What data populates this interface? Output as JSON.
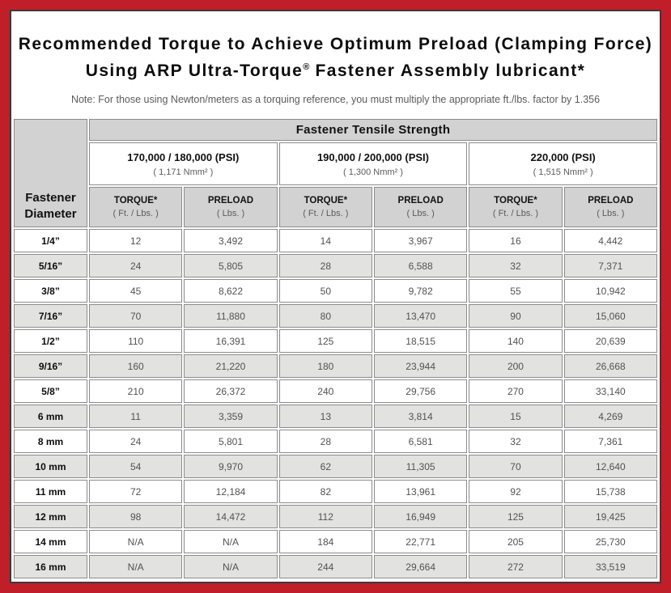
{
  "colors": {
    "frame_red": "#c01f29",
    "panel_border": "#3a3a3e",
    "header_gray": "#d2d2d2",
    "shaded_row_gray": "#e2e2e0",
    "cell_border_gray": "#8b8b8b",
    "value_text_gray": "#525252"
  },
  "title": {
    "line1": "Recommended Torque to Achieve Optimum Preload (Clamping Force)",
    "line2_pre": "Using ARP Ultra-Torque",
    "registered_mark": "®",
    "line2_post": " Fastener Assembly lubricant*"
  },
  "note": "Note: For those using Newton/meters as a torquing reference, you must multiply the appropriate ft./lbs. factor by 1.356",
  "table": {
    "corner_header": {
      "line1": "Fastener",
      "line2": "Diameter"
    },
    "tensile_header": "Fastener Tensile Strength",
    "sub_headers": {
      "torque_label": "TORQUE*",
      "torque_unit": "( Ft. / Lbs. )",
      "preload_label": "PRELOAD",
      "preload_unit": "( Lbs. )"
    }
  },
  "chart_data": {
    "type": "table",
    "title": "Recommended Torque to Achieve Optimum Preload (Clamping Force) Using ARP Ultra-Torque® Fastener Assembly lubricant*",
    "note": "Note: For those using Newton/meters as a torquing reference, you must multiply the appropriate ft./lbs. factor by 1.356",
    "column_groups": [
      {
        "tensile_strength": "170,000 / 180,000 (PSI)",
        "metric": "( 1,171 Nmm² )"
      },
      {
        "tensile_strength": "190,000 / 200,000 (PSI)",
        "metric": "( 1,300 Nmm² )"
      },
      {
        "tensile_strength": "220,000 (PSI)",
        "metric": "( 1,515 Nmm² )"
      }
    ],
    "columns": [
      "Fastener Diameter",
      "Torque Ft./Lbs. (170,000/180,000 PSI)",
      "Preload Lbs. (170,000/180,000 PSI)",
      "Torque Ft./Lbs. (190,000/200,000 PSI)",
      "Preload Lbs. (190,000/200,000 PSI)",
      "Torque Ft./Lbs. (220,000 PSI)",
      "Preload Lbs. (220,000 PSI)"
    ],
    "rows": [
      [
        "1/4”",
        "12",
        "3,492",
        "14",
        "3,967",
        "16",
        "4,442"
      ],
      [
        "5/16”",
        "24",
        "5,805",
        "28",
        "6,588",
        "32",
        "7,371"
      ],
      [
        "3/8”",
        "45",
        "8,622",
        "50",
        "9,782",
        "55",
        "10,942"
      ],
      [
        "7/16”",
        "70",
        "11,880",
        "80",
        "13,470",
        "90",
        "15,060"
      ],
      [
        "1/2”",
        "110",
        "16,391",
        "125",
        "18,515",
        "140",
        "20,639"
      ],
      [
        "9/16”",
        "160",
        "21,220",
        "180",
        "23,944",
        "200",
        "26,668"
      ],
      [
        "5/8”",
        "210",
        "26,372",
        "240",
        "29,756",
        "270",
        "33,140"
      ],
      [
        "6 mm",
        "11",
        "3,359",
        "13",
        "3,814",
        "15",
        "4,269"
      ],
      [
        "8 mm",
        "24",
        "5,801",
        "28",
        "6,581",
        "32",
        "7,361"
      ],
      [
        "10 mm",
        "54",
        "9,970",
        "62",
        "11,305",
        "70",
        "12,640"
      ],
      [
        "11 mm",
        "72",
        "12,184",
        "82",
        "13,961",
        "92",
        "15,738"
      ],
      [
        "12 mm",
        "98",
        "14,472",
        "112",
        "16,949",
        "125",
        "19,425"
      ],
      [
        "14 mm",
        "N/A",
        "N/A",
        "184",
        "22,771",
        "205",
        "25,730"
      ],
      [
        "16 mm",
        "N/A",
        "N/A",
        "244",
        "29,664",
        "272",
        "33,519"
      ]
    ]
  }
}
